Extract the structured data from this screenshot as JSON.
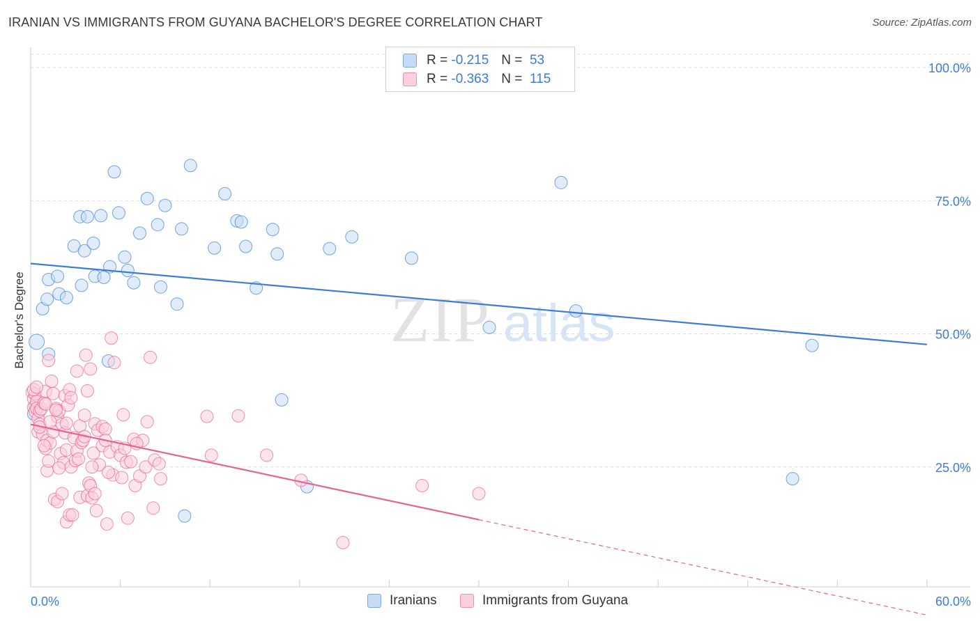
{
  "title": "IRANIAN VS IMMIGRANTS FROM GUYANA BACHELOR'S DEGREE CORRELATION CHART",
  "source": "Source: ZipAtlas.com",
  "watermark": {
    "zip": "ZIP",
    "atlas": "atlas"
  },
  "legend": {
    "r_label": "R =",
    "n_label": "N =",
    "rows": [
      {
        "name": "Iranians",
        "r": "-0.215",
        "n": "53",
        "color": "#7aa8e0",
        "fill": "#c6dcf6"
      },
      {
        "name": "Immigrants from Guyana",
        "r": "-0.363",
        "n": "115",
        "color": "#ee8fb0",
        "fill": "#fbd0de"
      }
    ]
  },
  "chart_data": {
    "type": "scatter",
    "xlabel": "",
    "ylabel": "Bachelor's Degree",
    "xlim": [
      0,
      60
    ],
    "ylim": [
      0,
      105
    ],
    "x_tick_labels": [
      "0.0%",
      "60.0%"
    ],
    "y_tick_labels": [
      "25.0%",
      "50.0%",
      "75.0%",
      "100.0%"
    ],
    "y_ticks": [
      25,
      50,
      75,
      100
    ],
    "grid": true,
    "series": [
      {
        "name": "Iranians",
        "color": "#3d7cd6",
        "fill": "#c6dcf6",
        "trend": {
          "x0": 0,
          "y0": 63.2,
          "x1": 60,
          "y1": 48.0,
          "dashed_from": null
        },
        "points": [
          [
            0.4,
            48.5
          ],
          [
            1.2,
            46.2
          ],
          [
            0.8,
            54.7
          ],
          [
            1.1,
            56.5
          ],
          [
            1.2,
            60.2
          ],
          [
            1.8,
            60.8
          ],
          [
            1.9,
            57.5
          ],
          [
            2.4,
            56.8
          ],
          [
            2.9,
            66.5
          ],
          [
            3.3,
            72.0
          ],
          [
            3.4,
            59.1
          ],
          [
            3.6,
            65.6
          ],
          [
            3.8,
            72.0
          ],
          [
            4.2,
            67.0
          ],
          [
            4.3,
            60.8
          ],
          [
            4.7,
            72.2
          ],
          [
            4.9,
            60.6
          ],
          [
            5.2,
            44.9
          ],
          [
            5.3,
            62.6
          ],
          [
            5.6,
            80.4
          ],
          [
            5.9,
            72.7
          ],
          [
            6.3,
            64.4
          ],
          [
            6.5,
            61.9
          ],
          [
            6.9,
            59.6
          ],
          [
            7.3,
            68.9
          ],
          [
            7.8,
            75.4
          ],
          [
            8.5,
            70.5
          ],
          [
            8.7,
            58.8
          ],
          [
            9.0,
            74.1
          ],
          [
            9.8,
            55.6
          ],
          [
            10.1,
            69.7
          ],
          [
            10.3,
            15.8
          ],
          [
            10.7,
            81.6
          ],
          [
            12.3,
            66.1
          ],
          [
            13.0,
            76.3
          ],
          [
            13.8,
            71.2
          ],
          [
            14.1,
            71.0
          ],
          [
            14.4,
            66.4
          ],
          [
            15.1,
            58.6
          ],
          [
            16.2,
            69.6
          ],
          [
            16.5,
            65.0
          ],
          [
            16.8,
            37.6
          ],
          [
            18.5,
            21.3
          ],
          [
            20.0,
            66.0
          ],
          [
            21.5,
            68.2
          ],
          [
            25.5,
            64.2
          ],
          [
            30.7,
            51.2
          ],
          [
            35.5,
            78.4
          ],
          [
            36.5,
            54.3
          ],
          [
            51.0,
            22.8
          ],
          [
            52.3,
            47.8
          ],
          [
            0.3,
            36.5
          ],
          [
            0.2,
            35.0
          ]
        ]
      },
      {
        "name": "Immigrants from Guyana",
        "color": "#e8628f",
        "fill": "#fbd0de",
        "trend": {
          "x0": 0,
          "y0": 33.0,
          "x1": 30,
          "y1": 15.1,
          "dashed_to_x": 60,
          "dashed_to_y": -2.8
        },
        "points": [
          [
            0.1,
            39.0
          ],
          [
            0.2,
            37.8
          ],
          [
            0.2,
            36.2
          ],
          [
            0.3,
            35.4
          ],
          [
            0.3,
            38.7
          ],
          [
            0.4,
            37.3
          ],
          [
            0.4,
            36.0
          ],
          [
            0.5,
            34.1
          ],
          [
            0.5,
            31.6
          ],
          [
            0.6,
            35.5
          ],
          [
            0.6,
            33.0
          ],
          [
            0.7,
            35.9
          ],
          [
            0.8,
            31.1
          ],
          [
            0.9,
            37.0
          ],
          [
            1.0,
            39.2
          ],
          [
            1.0,
            28.5
          ],
          [
            1.1,
            30.0
          ],
          [
            1.1,
            24.3
          ],
          [
            1.2,
            45.0
          ],
          [
            1.2,
            26.1
          ],
          [
            1.3,
            29.5
          ],
          [
            1.4,
            41.1
          ],
          [
            1.5,
            38.8
          ],
          [
            1.5,
            31.6
          ],
          [
            1.6,
            18.9
          ],
          [
            1.7,
            36.0
          ],
          [
            1.8,
            18.5
          ],
          [
            1.8,
            34.4
          ],
          [
            1.9,
            35.5
          ],
          [
            2.0,
            27.5
          ],
          [
            2.1,
            33.0
          ],
          [
            2.1,
            20.0
          ],
          [
            2.2,
            25.8
          ],
          [
            2.3,
            31.4
          ],
          [
            2.3,
            38.4
          ],
          [
            2.4,
            28.2
          ],
          [
            2.4,
            14.7
          ],
          [
            2.5,
            36.6
          ],
          [
            2.6,
            16.0
          ],
          [
            2.6,
            39.5
          ],
          [
            2.7,
            25.0
          ],
          [
            2.8,
            16.0
          ],
          [
            2.9,
            30.5
          ],
          [
            3.0,
            26.2
          ],
          [
            3.1,
            28.0
          ],
          [
            3.1,
            43.0
          ],
          [
            3.3,
            19.3
          ],
          [
            3.3,
            32.7
          ],
          [
            3.4,
            29.6
          ],
          [
            3.5,
            30.0
          ],
          [
            3.6,
            34.7
          ],
          [
            3.7,
            46.0
          ],
          [
            3.8,
            39.3
          ],
          [
            3.8,
            19.6
          ],
          [
            3.9,
            22.0
          ],
          [
            4.0,
            21.5
          ],
          [
            4.0,
            43.4
          ],
          [
            4.1,
            19.2
          ],
          [
            4.2,
            27.6
          ],
          [
            4.3,
            33.1
          ],
          [
            4.3,
            20.0
          ],
          [
            4.5,
            31.9
          ],
          [
            4.6,
            25.4
          ],
          [
            4.8,
            29.0
          ],
          [
            4.8,
            32.6
          ],
          [
            5.0,
            32.1
          ],
          [
            5.0,
            30.0
          ],
          [
            5.1,
            14.3
          ],
          [
            5.3,
            27.8
          ],
          [
            5.4,
            49.2
          ],
          [
            5.5,
            23.5
          ],
          [
            5.6,
            44.6
          ],
          [
            5.8,
            28.8
          ],
          [
            6.0,
            27.2
          ],
          [
            6.2,
            34.8
          ],
          [
            6.3,
            28.5
          ],
          [
            6.4,
            25.9
          ],
          [
            6.5,
            15.4
          ],
          [
            6.7,
            26.0
          ],
          [
            6.9,
            30.2
          ],
          [
            7.0,
            21.5
          ],
          [
            7.3,
            23.3
          ],
          [
            7.5,
            30.0
          ],
          [
            7.7,
            25.0
          ],
          [
            7.8,
            33.5
          ],
          [
            8.0,
            45.6
          ],
          [
            8.2,
            17.3
          ],
          [
            8.3,
            26.3
          ],
          [
            8.7,
            22.8
          ],
          [
            8.6,
            25.6
          ],
          [
            11.8,
            34.5
          ],
          [
            12.1,
            27.2
          ],
          [
            13.9,
            34.6
          ],
          [
            15.8,
            27.2
          ],
          [
            18.1,
            22.5
          ],
          [
            20.9,
            10.8
          ],
          [
            26.2,
            21.5
          ],
          [
            30.0,
            20.0
          ],
          [
            0.2,
            39.5
          ],
          [
            0.6,
            32.5
          ],
          [
            0.9,
            29.0
          ],
          [
            1.3,
            33.5
          ],
          [
            1.9,
            24.8
          ],
          [
            2.4,
            33.2
          ],
          [
            3.2,
            26.5
          ],
          [
            4.4,
            16.8
          ],
          [
            5.2,
            24.0
          ],
          [
            6.1,
            23.0
          ],
          [
            7.1,
            29.4
          ],
          [
            0.4,
            40.0
          ],
          [
            1.0,
            36.8
          ],
          [
            1.7,
            35.7
          ],
          [
            2.7,
            38.0
          ],
          [
            3.6,
            30.7
          ],
          [
            4.1,
            25.0
          ]
        ]
      }
    ]
  }
}
